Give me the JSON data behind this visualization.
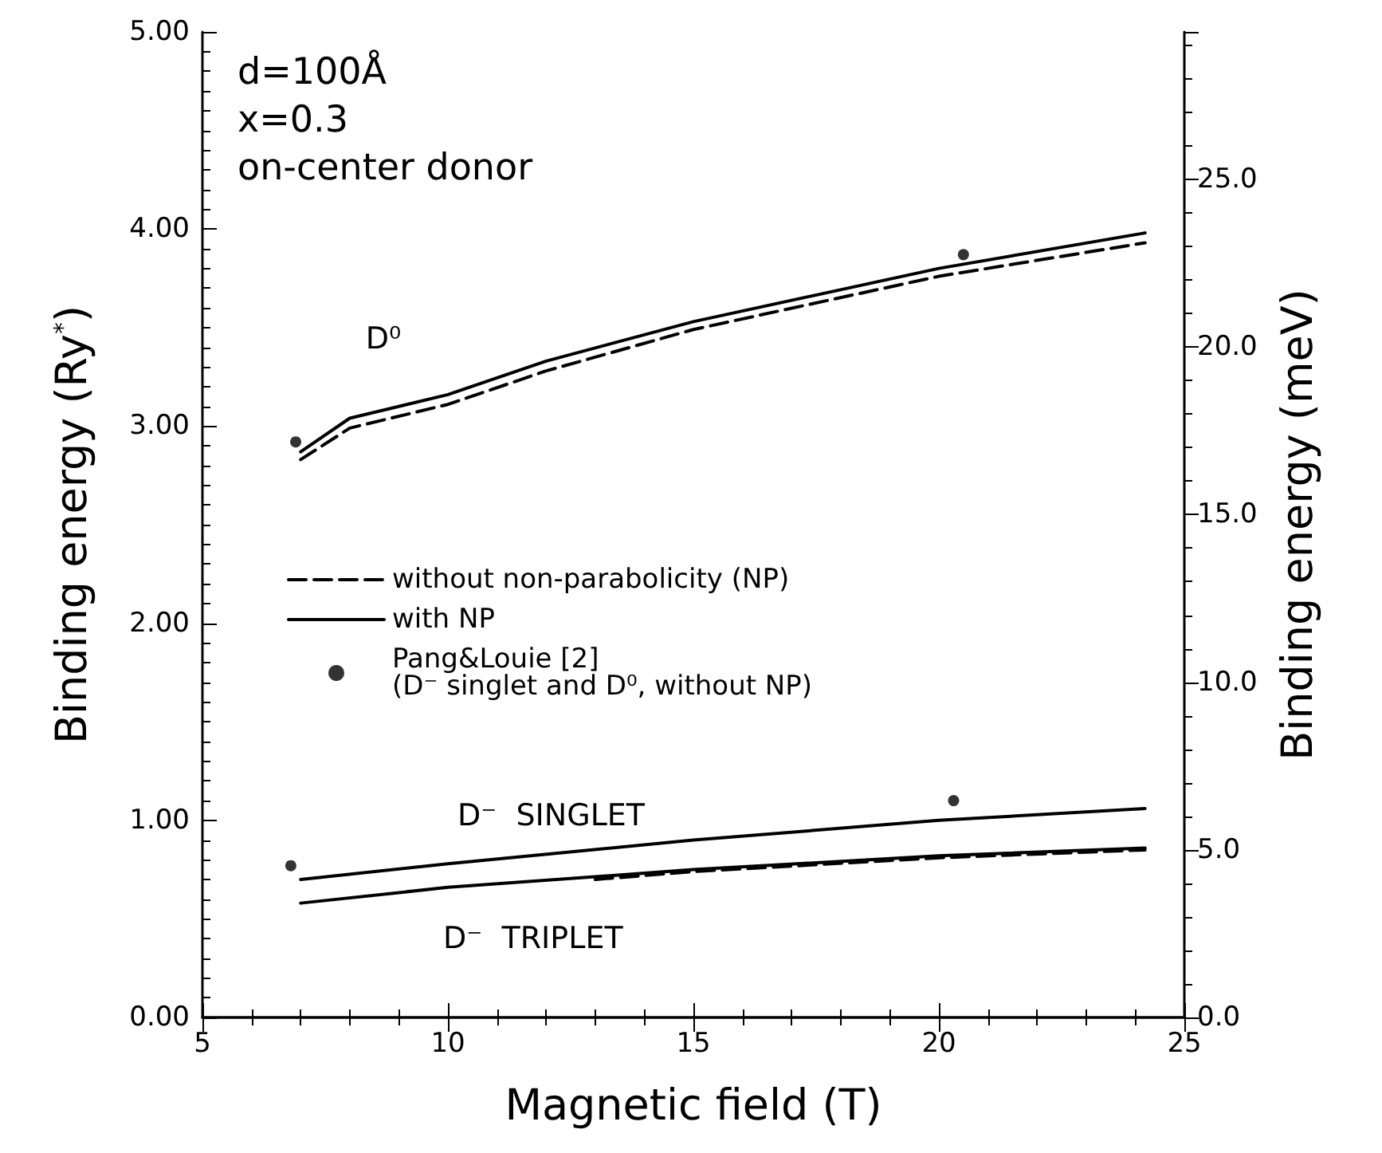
{
  "chart_data": {
    "type": "line",
    "xlabel": "Magnetic field (T)",
    "ylabel": "Binding energy (Ry$^{*}$)",
    "y2label": "Binding energy (meV)",
    "xlim": [
      5,
      25
    ],
    "xticks": [
      5,
      10,
      15,
      20,
      25
    ],
    "ylim": [
      0,
      5
    ],
    "yticks": [
      {
        "value": 0,
        "label": "0.00"
      },
      {
        "value": 1,
        "label": "1.00"
      },
      {
        "value": 2,
        "label": "2.00"
      },
      {
        "value": 3,
        "label": "3.00"
      },
      {
        "value": 4,
        "label": "4.00"
      },
      {
        "value": 5,
        "label": "5.00"
      }
    ],
    "y2lim": [
      0,
      29.4
    ],
    "y2ticks": [
      {
        "value": 0,
        "label": "0.0"
      },
      {
        "value": 5,
        "label": "5.0"
      },
      {
        "value": 10,
        "label": "10.0"
      },
      {
        "value": 15,
        "label": "15.0"
      },
      {
        "value": 20,
        "label": "20.0"
      },
      {
        "value": 25,
        "label": "25.0"
      }
    ],
    "series": [
      {
        "name": "without non-parabolicity (NP)",
        "color": "#000000",
        "line_style": "dashed",
        "x": [
          7,
          8,
          10,
          12,
          15,
          20,
          24.2
        ],
        "values": [
          2.83,
          2.99,
          3.11,
          3.28,
          3.49,
          3.76,
          3.93
        ]
      },
      {
        "color": "#000000",
        "line_style": "dashed",
        "x": [
          13,
          15,
          20,
          24.2
        ],
        "values": [
          0.7,
          0.74,
          0.81,
          0.85
        ]
      },
      {
        "name": "with NP",
        "color": "#000000",
        "line_style": "solid",
        "x": [
          7,
          8,
          10,
          12,
          15,
          20,
          24.2
        ],
        "values": [
          2.87,
          3.04,
          3.16,
          3.33,
          3.53,
          3.8,
          3.98
        ]
      },
      {
        "color": "#000000",
        "line_style": "solid",
        "x": [
          7,
          10,
          15,
          20,
          24.2
        ],
        "values": [
          0.7,
          0.78,
          0.9,
          1.0,
          1.06
        ]
      },
      {
        "color": "#000000",
        "line_style": "solid",
        "x": [
          7,
          10,
          15,
          20,
          24.2
        ],
        "values": [
          0.58,
          0.66,
          0.75,
          0.82,
          0.86
        ]
      },
      {
        "name": "Pang&Louie [2]\n(D⁻ singlet and D⁰, without NP)",
        "type": "scatter",
        "color": "#000000",
        "marker": "circle",
        "x": [
          6.9,
          6.8,
          20.3,
          20.5
        ],
        "values": [
          2.92,
          0.77,
          1.1,
          3.87
        ]
      }
    ],
    "legend": "left",
    "annotations": [
      "d=100Å",
      "x=0.3",
      "on-center donor",
      "D⁰",
      "D⁻  SINGLET",
      "D⁻  TRIPLET"
    ]
  }
}
